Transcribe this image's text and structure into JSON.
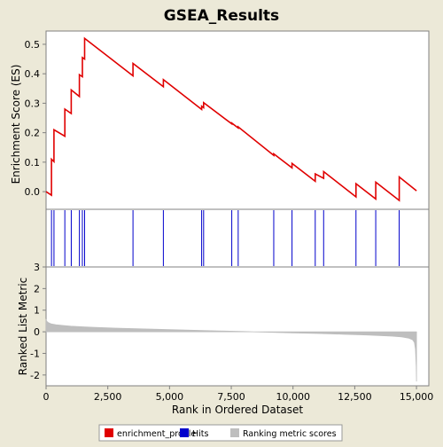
{
  "colors": {
    "background": "#ECE9D8",
    "plot_background": "#FFFFFF",
    "profile": "#E00000",
    "hits": "#0000CC",
    "ranking": "#BEBEBE",
    "axis": "#808080"
  },
  "chart_data": {
    "type": "line",
    "title": "GSEA_Results",
    "xlabel": "Rank in Ordered Dataset",
    "xlim": [
      0,
      15500
    ],
    "x_ticks": [
      0,
      2500,
      5000,
      7500,
      10000,
      12500,
      15000
    ],
    "x_tick_labels": [
      "0",
      "2,500",
      "5,000",
      "7,500",
      "10,000",
      "12,500",
      "15,000"
    ],
    "legend_position": "bottom",
    "legend": [
      {
        "label": "enrichment_profile",
        "color": "#E00000"
      },
      {
        "label": "Hits",
        "color": "#0000CC"
      },
      {
        "label": "Ranking metric scores",
        "color": "#BEBEBE"
      }
    ],
    "enrichment_panel": {
      "ylabel": "Enrichment Score (ES)",
      "ylim": [
        -0.06,
        0.545
      ],
      "y_ticks": [
        0.0,
        0.1,
        0.2,
        0.3,
        0.4,
        0.5
      ],
      "y_tick_labels": [
        "0.0",
        "0.1",
        "0.2",
        "0.3",
        "0.4",
        "0.5"
      ],
      "series": [
        {
          "x": [
            0,
            220,
            220,
            320,
            320,
            760,
            760,
            1020,
            1020,
            1350,
            1350,
            1470,
            1470,
            1560,
            1560,
            3520,
            3520,
            4750,
            4750,
            6300,
            6300,
            6380,
            6380,
            7520,
            7520,
            7780,
            7780,
            9220,
            9220,
            9960,
            9960,
            10900,
            10900,
            11240,
            11240,
            12550,
            12550,
            13350,
            13350,
            14300,
            14300,
            15000
          ],
          "y": [
            0.0,
            -0.012,
            0.11,
            0.102,
            0.21,
            0.188,
            0.28,
            0.265,
            0.345,
            0.323,
            0.397,
            0.39,
            0.455,
            0.45,
            0.52,
            0.393,
            0.435,
            0.356,
            0.38,
            0.279,
            0.29,
            0.285,
            0.302,
            0.23,
            0.233,
            0.216,
            0.22,
            0.123,
            0.128,
            0.081,
            0.096,
            0.035,
            0.06,
            0.045,
            0.068,
            -0.018,
            0.027,
            -0.025,
            0.032,
            -0.03,
            0.05,
            0.003
          ]
        }
      ]
    },
    "hits_panel": {
      "hit_positions": [
        220,
        320,
        760,
        1020,
        1350,
        1470,
        1560,
        3520,
        4750,
        6300,
        6380,
        7520,
        7780,
        9220,
        9960,
        10900,
        11240,
        12550,
        13350,
        14300
      ]
    },
    "ranking_panel": {
      "ylabel": "Ranked List Metric",
      "ylim": [
        -2.5,
        3.0
      ],
      "y_ticks": [
        -2,
        -1,
        0,
        1,
        2,
        3
      ],
      "y_tick_labels": [
        "-2",
        "-1",
        "0",
        "1",
        "2",
        "3"
      ],
      "x": [
        0,
        40,
        100,
        200,
        400,
        700,
        1000,
        1500,
        2000,
        3000,
        4000,
        5000,
        6000,
        7000,
        8000,
        9000,
        10000,
        11000,
        12000,
        13000,
        14000,
        14400,
        14700,
        14850,
        14920,
        14960,
        14990,
        15000
      ],
      "y": [
        0.55,
        0.47,
        0.42,
        0.37,
        0.33,
        0.29,
        0.26,
        0.23,
        0.2,
        0.16,
        0.13,
        0.1,
        0.07,
        0.04,
        0.01,
        -0.02,
        -0.05,
        -0.08,
        -0.11,
        -0.15,
        -0.2,
        -0.24,
        -0.3,
        -0.38,
        -0.5,
        -0.8,
        -1.6,
        -2.3
      ]
    }
  }
}
